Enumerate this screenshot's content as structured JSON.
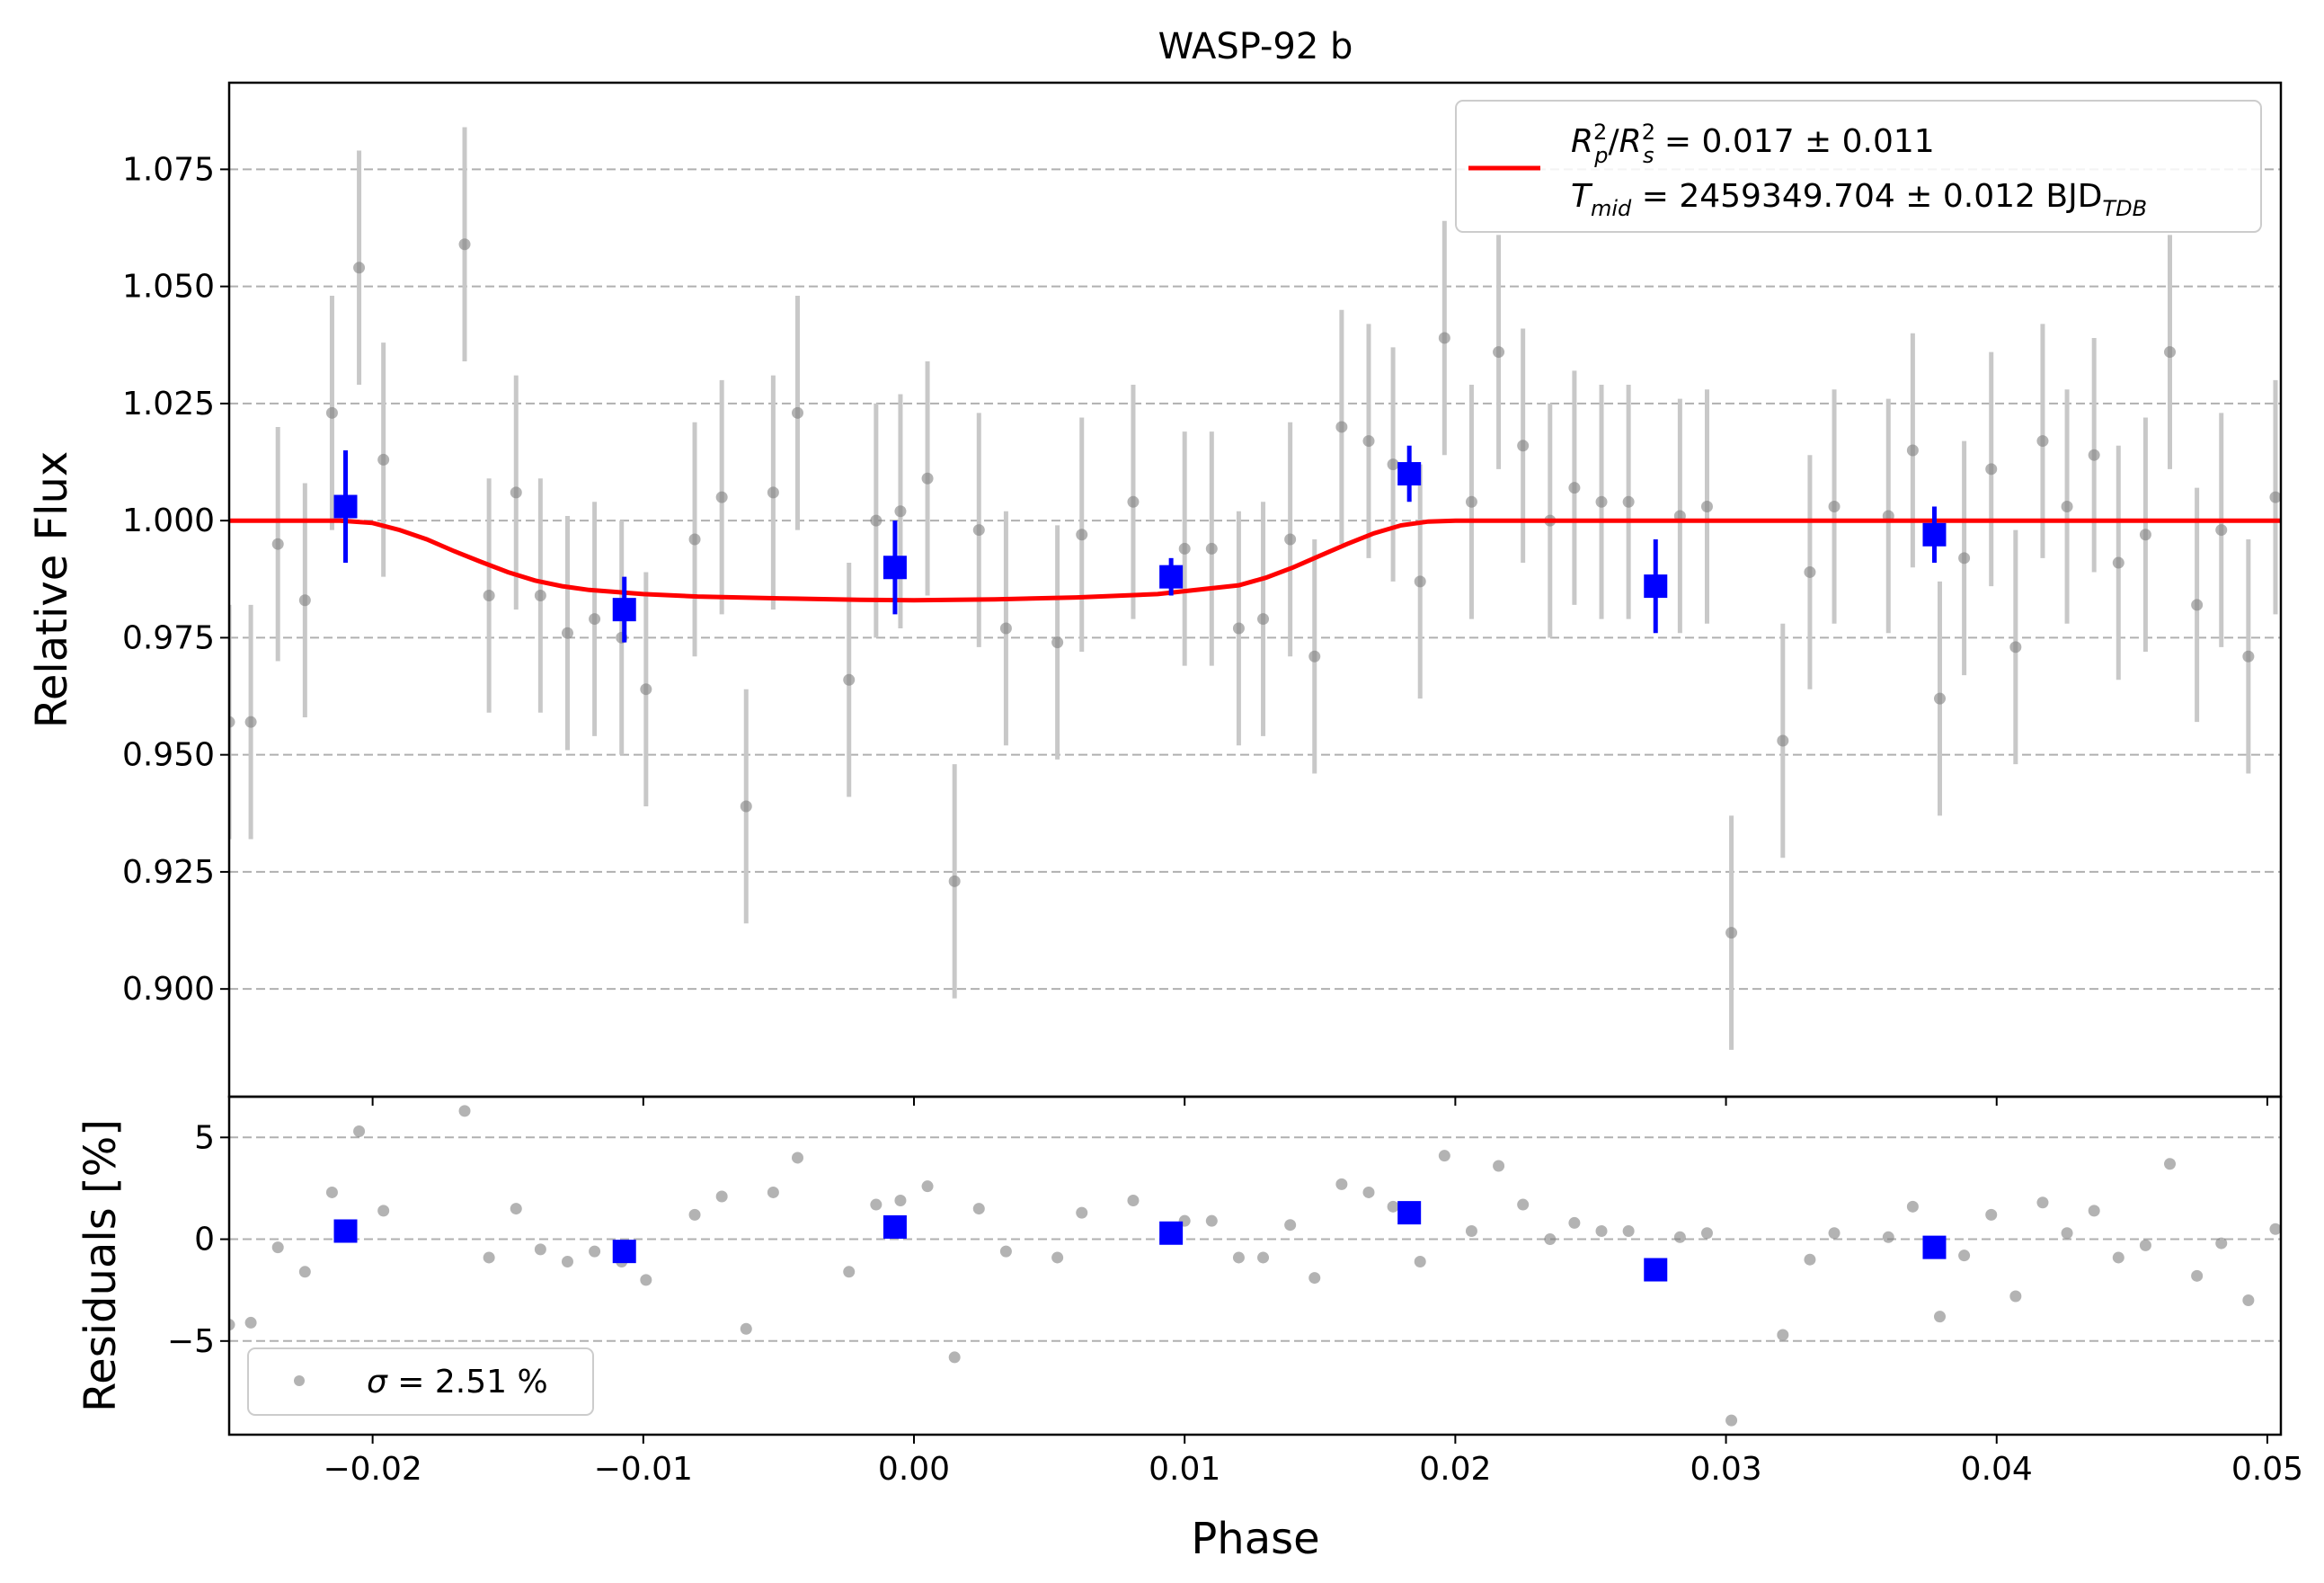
{
  "chart_data": [
    {
      "type": "scatter",
      "panel": "main",
      "title": "WASP-92 b",
      "xlabel": "",
      "ylabel": "Relative Flux",
      "xlim": [
        -0.0253,
        0.0505
      ],
      "ylim": [
        0.877,
        1.0935
      ],
      "grid": "horizontal dashed",
      "yticks": [
        0.9,
        0.925,
        0.95,
        0.975,
        1.0,
        1.025,
        1.05,
        1.075
      ],
      "ytick_labels": [
        "0.900",
        "0.925",
        "0.950",
        "0.975",
        "1.000",
        "1.025",
        "1.050",
        "1.075"
      ],
      "legend": {
        "placement": "upper right",
        "line1_main": "R",
        "line1_p": "p",
        "line1_s": "s",
        "line1_sup": "2",
        "line1_value": " = 0.017 ± 0.011",
        "line2_main": "T",
        "line2_sub": "mid",
        "line2_value": " = 2459349.704 ± 0.012 BJD",
        "line2_tdb": "TDB"
      },
      "colors": {
        "data": "#808080",
        "errorbar": "#c8c8c8",
        "binned": "#0000ff",
        "model": "#ff0000"
      },
      "raw_data": {
        "x": [
          -0.0253,
          -0.0245,
          -0.0235,
          -0.0225,
          -0.0215,
          -0.0205,
          -0.0196,
          -0.0166,
          -0.0157,
          -0.0147,
          -0.0138,
          -0.0128,
          -0.0118,
          -0.0108,
          -0.0099,
          -0.0081,
          -0.0071,
          -0.0052,
          -0.0062,
          -0.0043,
          -0.0024,
          -0.0014,
          -0.0005,
          0.0005,
          0.0015,
          0.0024,
          0.0034,
          0.0053,
          0.0062,
          0.0081,
          0.01,
          0.011,
          0.012,
          0.0129,
          0.0139,
          0.0148,
          0.0158,
          0.0168,
          0.0177,
          0.0187,
          0.0196,
          0.0206,
          0.0216,
          0.0225,
          0.0235,
          0.0244,
          0.0254,
          0.0264,
          0.0283,
          0.0293,
          0.0302,
          0.0321,
          0.0331,
          0.034,
          0.036,
          0.0369,
          0.0379,
          0.0388,
          0.0398,
          0.0407,
          0.0417,
          0.0426,
          0.0436,
          0.0445,
          0.0455,
          0.0464,
          0.0474,
          0.0483,
          0.0493,
          0.0503
        ],
        "y": [
          0.957,
          0.957,
          0.995,
          0.983,
          1.023,
          1.054,
          1.013,
          1.059,
          0.984,
          1.006,
          0.984,
          0.976,
          0.979,
          0.975,
          0.964,
          0.996,
          1.005,
          1.006,
          0.939,
          1.023,
          0.966,
          1.0,
          1.002,
          1.009,
          0.923,
          0.998,
          0.977,
          0.974,
          0.997,
          1.004,
          0.994,
          0.994,
          0.977,
          0.979,
          0.996,
          0.971,
          1.02,
          1.017,
          1.012,
          0.987,
          1.039,
          1.004,
          1.036,
          1.016,
          1.0,
          1.007,
          1.004,
          1.004,
          1.001,
          1.003,
          0.912,
          0.953,
          0.989,
          1.003,
          1.001,
          1.015,
          0.962,
          0.992,
          1.011,
          0.973,
          1.017,
          1.003,
          1.014,
          0.991,
          0.997,
          1.036,
          0.982,
          0.998,
          0.971,
          1.005
        ],
        "yerr": 0.025,
        "residuals_percent": [
          -4.2,
          -4.1,
          -0.4,
          -1.6,
          2.3,
          5.3,
          1.4,
          6.3,
          -0.9,
          1.5,
          -0.5,
          -1.1,
          -0.6,
          -1.1,
          -2.0,
          1.2,
          2.1,
          2.3,
          -4.4,
          4.0,
          -1.6,
          1.7,
          1.9,
          2.6,
          -5.8,
          1.5,
          -0.6,
          -0.9,
          1.3,
          1.9,
          0.9,
          0.9,
          -0.9,
          -0.9,
          0.7,
          -1.9,
          2.7,
          2.3,
          1.6,
          -1.1,
          4.1,
          0.4,
          3.6,
          1.7,
          0.0,
          0.8,
          0.4,
          0.4,
          0.1,
          0.3,
          -8.9,
          -4.7,
          -1.0,
          0.3,
          0.1,
          1.6,
          -3.8,
          -0.8,
          1.2,
          -2.8,
          1.8,
          0.3,
          1.4,
          -0.9,
          -0.3,
          3.7,
          -1.8,
          -0.2,
          -3.0,
          0.5
        ]
      },
      "binned_data": {
        "x": [
          -0.021,
          -0.0107,
          -0.0007,
          0.0095,
          0.0183,
          0.0274,
          0.0377
        ],
        "y": [
          1.003,
          0.981,
          0.99,
          0.988,
          1.01,
          0.986,
          0.997
        ],
        "yerr": [
          0.012,
          0.007,
          0.01,
          0.004,
          0.006,
          0.01,
          0.006
        ],
        "residuals_percent": [
          0.4,
          -0.6,
          0.6,
          0.3,
          1.3,
          -1.5,
          -0.4
        ]
      },
      "model": {
        "x": [
          -0.0253,
          -0.0212,
          -0.02,
          -0.019,
          -0.018,
          -0.017,
          -0.016,
          -0.015,
          -0.014,
          -0.013,
          -0.012,
          -0.01,
          -0.008,
          -0.005,
          -0.002,
          0.0,
          0.003,
          0.006,
          0.009,
          0.012,
          0.013,
          0.014,
          0.015,
          0.016,
          0.017,
          0.018,
          0.019,
          0.02,
          0.021,
          0.0505
        ],
        "y": [
          1.0,
          1.0,
          0.9995,
          0.998,
          0.996,
          0.9935,
          0.9912,
          0.989,
          0.9872,
          0.986,
          0.9852,
          0.9843,
          0.9838,
          0.9834,
          0.9831,
          0.983,
          0.9832,
          0.9836,
          0.9843,
          0.9862,
          0.9878,
          0.99,
          0.9925,
          0.995,
          0.9973,
          0.999,
          0.9998,
          1.0,
          1.0,
          1.0
        ]
      }
    },
    {
      "type": "scatter",
      "panel": "residuals",
      "xlabel": "Phase",
      "ylabel": "Residuals [%]",
      "xlim": [
        -0.0253,
        0.0505
      ],
      "ylim": [
        -9.6,
        7.0
      ],
      "grid": "horizontal dashed",
      "xticks": [
        -0.02,
        -0.01,
        0.0,
        0.01,
        0.02,
        0.03,
        0.04,
        0.05
      ],
      "xtick_labels": [
        "−0.02",
        "−0.01",
        "0.00",
        "0.01",
        "0.02",
        "0.03",
        "0.04",
        "0.05"
      ],
      "yticks": [
        -5,
        0,
        5
      ],
      "ytick_labels": [
        "−5",
        "0",
        "5"
      ],
      "legend": {
        "placement": "lower left",
        "sigma_symbol": "σ",
        "sigma_value": " = 2.51 %"
      }
    }
  ]
}
